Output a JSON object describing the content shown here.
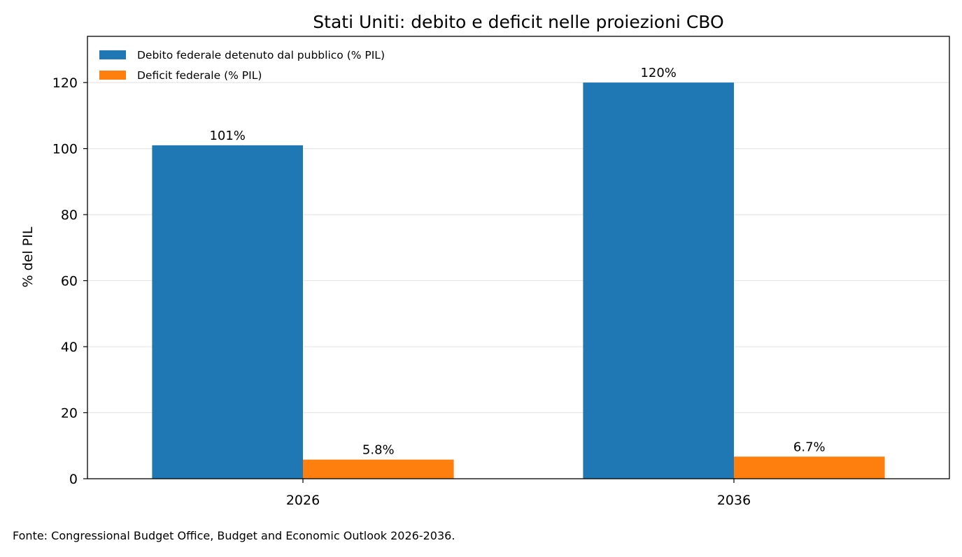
{
  "chart_data": {
    "type": "bar",
    "title": "Stati Uniti: debito e deficit nelle proiezioni CBO",
    "xlabel": "",
    "ylabel": "% del PIL",
    "categories": [
      "2026",
      "2036"
    ],
    "series": [
      {
        "name": "Debito federale detenuto dal pubblico (% PIL)",
        "values": [
          101,
          120
        ],
        "labels": [
          "101%",
          "120%"
        ],
        "color": "#1f77b4"
      },
      {
        "name": "Deficit federale (% PIL)",
        "values": [
          5.8,
          6.7
        ],
        "labels": [
          "5.8%",
          "6.7%"
        ],
        "color": "#ff7f0e"
      }
    ],
    "ylim": [
      0,
      134
    ],
    "yticks": [
      0,
      20,
      40,
      60,
      80,
      100,
      120
    ],
    "grid": "horizontal",
    "legend_position": "top-left"
  },
  "footnote": "Fonte: Congressional Budget Office, Budget and Economic Outlook 2026-2036."
}
